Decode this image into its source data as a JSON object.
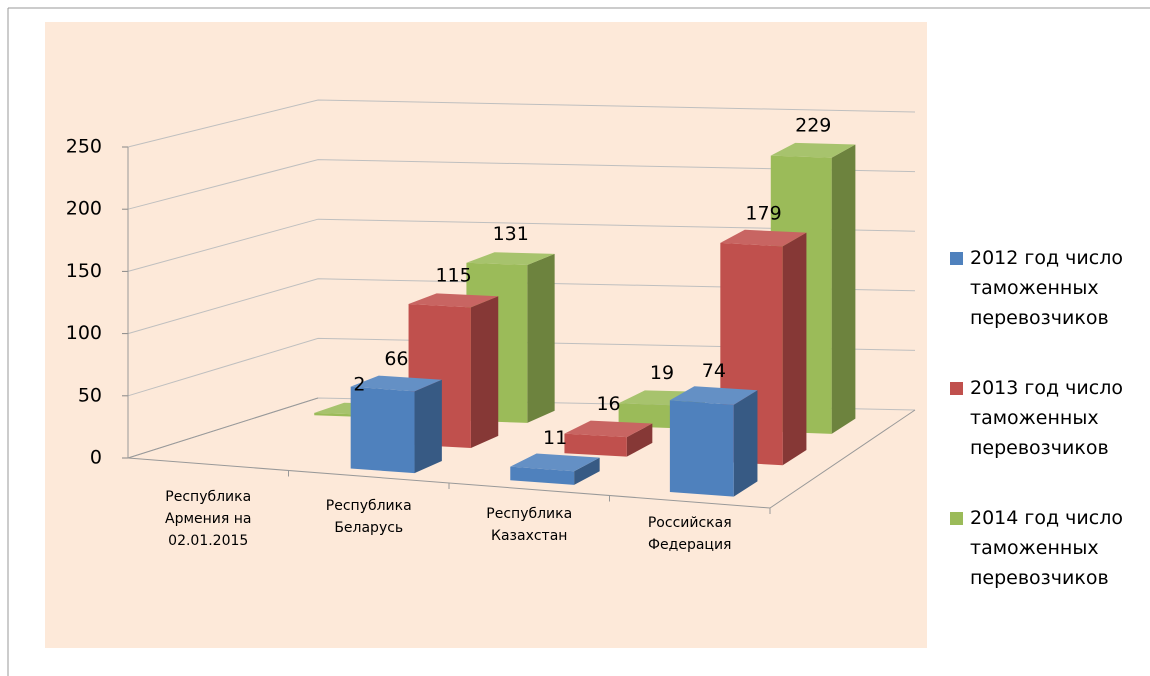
{
  "chart_data": {
    "type": "bar3d",
    "categories": [
      "Республика\nАрмения на\n02.01.2015",
      "Республика\nБеларусь",
      "Республика\nКазахстан",
      "Российская\nФедерация"
    ],
    "series": [
      {
        "name": "2012 год число таможенных перевозчиков",
        "color": "#4f81bd",
        "values": [
          null,
          66,
          11,
          74
        ]
      },
      {
        "name": "2013 год число таможенных перевозчиков",
        "color": "#c0504d",
        "values": [
          null,
          115,
          16,
          179
        ]
      },
      {
        "name": "2014 год число таможенных перевозчиков",
        "color": "#9bbb59",
        "values": [
          2,
          131,
          19,
          229
        ]
      }
    ],
    "ylim": [
      0,
      250
    ],
    "yticks": [
      0,
      50,
      100,
      150,
      200,
      250
    ],
    "grid": true,
    "legend": "right"
  }
}
